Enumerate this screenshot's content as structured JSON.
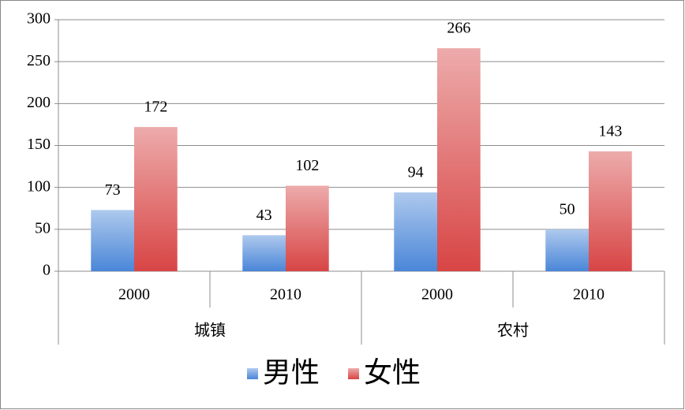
{
  "chart_data": {
    "type": "bar",
    "groups": [
      {
        "name": "城镇",
        "categories": [
          "2000",
          "2010"
        ]
      },
      {
        "name": "农村",
        "categories": [
          "2000",
          "2010"
        ]
      }
    ],
    "series": [
      {
        "name": "男性",
        "color": "#4a86d8",
        "values": [
          73,
          43,
          94,
          50
        ]
      },
      {
        "name": "女性",
        "color": "#d84545",
        "values": [
          172,
          102,
          266,
          143
        ]
      }
    ],
    "ylim": [
      0,
      300
    ],
    "yticks": [
      0,
      50,
      100,
      150,
      200,
      250,
      300
    ],
    "grid": true,
    "legend": "bottom"
  }
}
